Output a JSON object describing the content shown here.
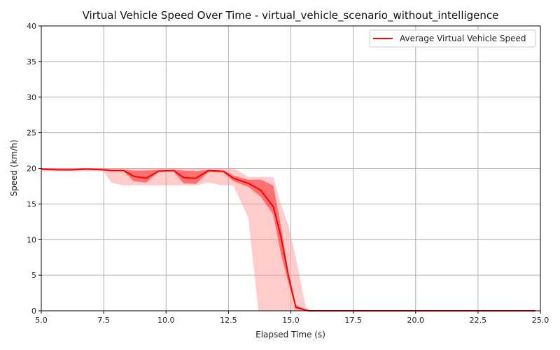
{
  "chart_data": {
    "type": "line",
    "title": "Virtual Vehicle Speed Over Time - virtual_vehicle_scenario_without_intelligence",
    "xlabel": "Elapsed Time (s)",
    "ylabel": "Speed (km/h)",
    "xlim": [
      5,
      25
    ],
    "ylim": [
      0,
      40
    ],
    "x_ticks": [
      5.0,
      7.5,
      10.0,
      12.5,
      15.0,
      17.5,
      20.0,
      22.5,
      25.0
    ],
    "x_tick_labels": [
      "5.0",
      "7.5",
      "10.0",
      "12.5",
      "15.0",
      "17.5",
      "20.0",
      "22.5",
      "25.0"
    ],
    "y_ticks": [
      0,
      5,
      10,
      15,
      20,
      25,
      30,
      35,
      40
    ],
    "y_tick_labels": [
      "0",
      "5",
      "10",
      "15",
      "20",
      "25",
      "30",
      "35",
      "40"
    ],
    "grid": true,
    "legend_position": "top-right",
    "colors": {
      "line": "#ff0000",
      "band_inner": "#ff0000",
      "band_outer": "#ff9a9a",
      "grid": "#b0b0b0"
    },
    "series": [
      {
        "name": "Average Virtual Vehicle Speed",
        "x": [
          5.0,
          5.7,
          6.2,
          6.8,
          7.5,
          7.8,
          8.3,
          8.7,
          9.2,
          9.7,
          10.3,
          10.7,
          11.2,
          11.7,
          12.3,
          12.7,
          13.3,
          13.8,
          14.3,
          14.6,
          14.9,
          15.2,
          15.7,
          16.5,
          24.8
        ],
        "y": [
          19.9,
          19.8,
          19.8,
          19.9,
          19.8,
          19.7,
          19.7,
          18.9,
          18.6,
          19.6,
          19.7,
          18.7,
          18.6,
          19.7,
          19.6,
          18.6,
          17.9,
          16.9,
          14.6,
          10.5,
          5.0,
          0.5,
          0.0,
          0.0,
          0.0
        ]
      }
    ],
    "band_inner": {
      "x": [
        5.0,
        5.7,
        6.2,
        6.8,
        7.5,
        7.8,
        8.3,
        8.7,
        9.2,
        9.7,
        10.3,
        10.7,
        11.2,
        11.7,
        12.3,
        12.7,
        13.3,
        13.8,
        14.3,
        14.6,
        14.9,
        15.2,
        15.7,
        16.5,
        24.8
      ],
      "upper": [
        20.0,
        19.9,
        19.9,
        20.0,
        19.9,
        19.8,
        19.8,
        19.7,
        19.7,
        19.8,
        19.8,
        19.7,
        19.6,
        19.8,
        19.7,
        19.0,
        18.4,
        18.4,
        17.6,
        12.0,
        5.5,
        0.8,
        0.0,
        0.0,
        0.0
      ],
      "lower": [
        19.8,
        19.7,
        19.7,
        19.8,
        19.7,
        19.6,
        19.6,
        18.2,
        18.0,
        19.5,
        19.6,
        17.9,
        17.8,
        19.5,
        19.4,
        18.2,
        17.4,
        16.0,
        13.5,
        8.0,
        4.0,
        0.2,
        0.0,
        0.0,
        0.0
      ]
    },
    "band_outer": {
      "x": [
        5.0,
        5.7,
        6.2,
        6.8,
        7.5,
        7.8,
        8.3,
        8.7,
        9.2,
        9.7,
        10.3,
        10.7,
        11.2,
        11.7,
        12.3,
        12.7,
        13.3,
        13.7,
        13.8,
        14.3,
        14.6,
        14.9,
        15.2,
        15.6,
        15.8,
        16.5,
        24.8
      ],
      "upper": [
        20.0,
        20.0,
        20.0,
        20.0,
        20.0,
        20.0,
        20.0,
        20.0,
        20.0,
        20.0,
        20.0,
        20.0,
        20.0,
        20.0,
        20.0,
        20.0,
        18.8,
        18.8,
        18.8,
        18.8,
        15.0,
        12.0,
        7.5,
        0.5,
        0.0,
        0.0,
        0.0
      ],
      "lower": [
        19.6,
        19.6,
        19.6,
        19.6,
        19.6,
        18.0,
        17.6,
        17.6,
        17.6,
        17.6,
        17.6,
        17.6,
        17.6,
        18.0,
        17.6,
        17.6,
        13.0,
        0.0,
        0.0,
        0.0,
        0.0,
        0.0,
        0.0,
        0.0,
        0.0,
        0.0,
        0.0
      ]
    }
  }
}
